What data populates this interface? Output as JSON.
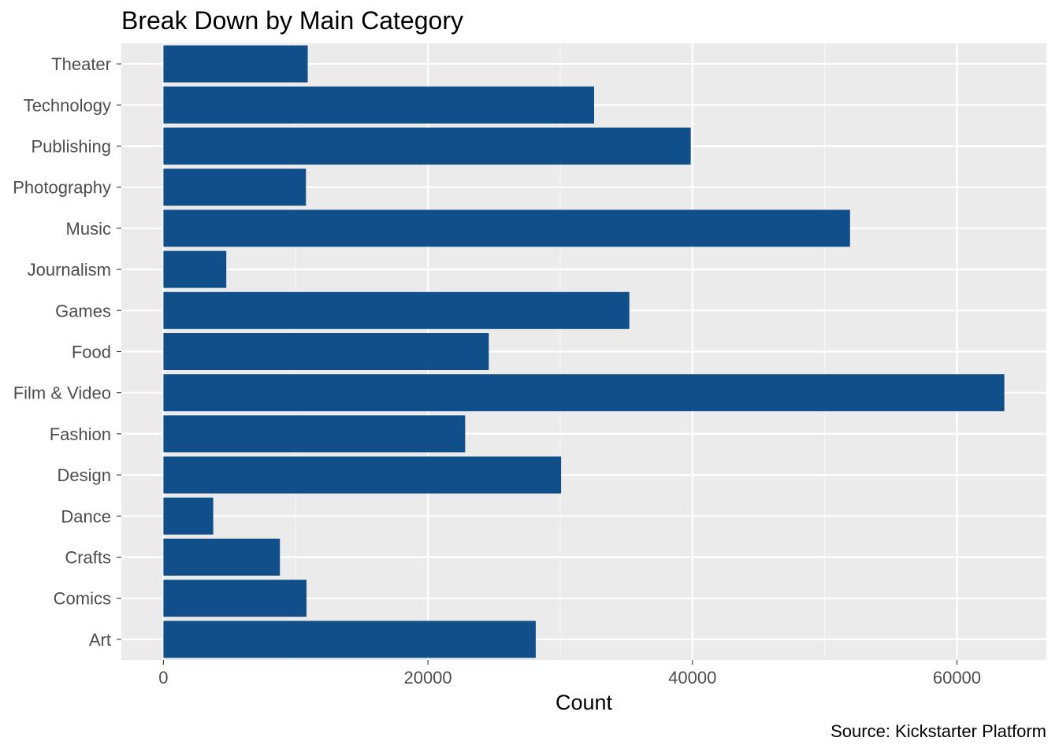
{
  "chart_data": {
    "type": "bar",
    "orientation": "horizontal",
    "title": "Break Down by Main Category",
    "caption": "Source: Kickstarter Platform",
    "xlabel": "Count",
    "ylabel": "",
    "categories": [
      "Art",
      "Comics",
      "Crafts",
      "Dance",
      "Design",
      "Fashion",
      "Film & Video",
      "Food",
      "Games",
      "Journalism",
      "Music",
      "Photography",
      "Publishing",
      "Technology",
      "Theater"
    ],
    "values": [
      28153,
      10819,
      8809,
      3768,
      30070,
      22816,
      63585,
      24602,
      35231,
      4755,
      51918,
      10779,
      39874,
      32569,
      10913
    ],
    "xlim": [
      -3180,
      66765
    ],
    "xticks": [
      0,
      20000,
      40000,
      60000
    ],
    "grid": true,
    "legend": "none",
    "colors": {
      "bar": "#114f8a",
      "panel": "#ebebeb",
      "grid_major": "#ffffff",
      "grid_minor": "#f7f7f7"
    }
  }
}
